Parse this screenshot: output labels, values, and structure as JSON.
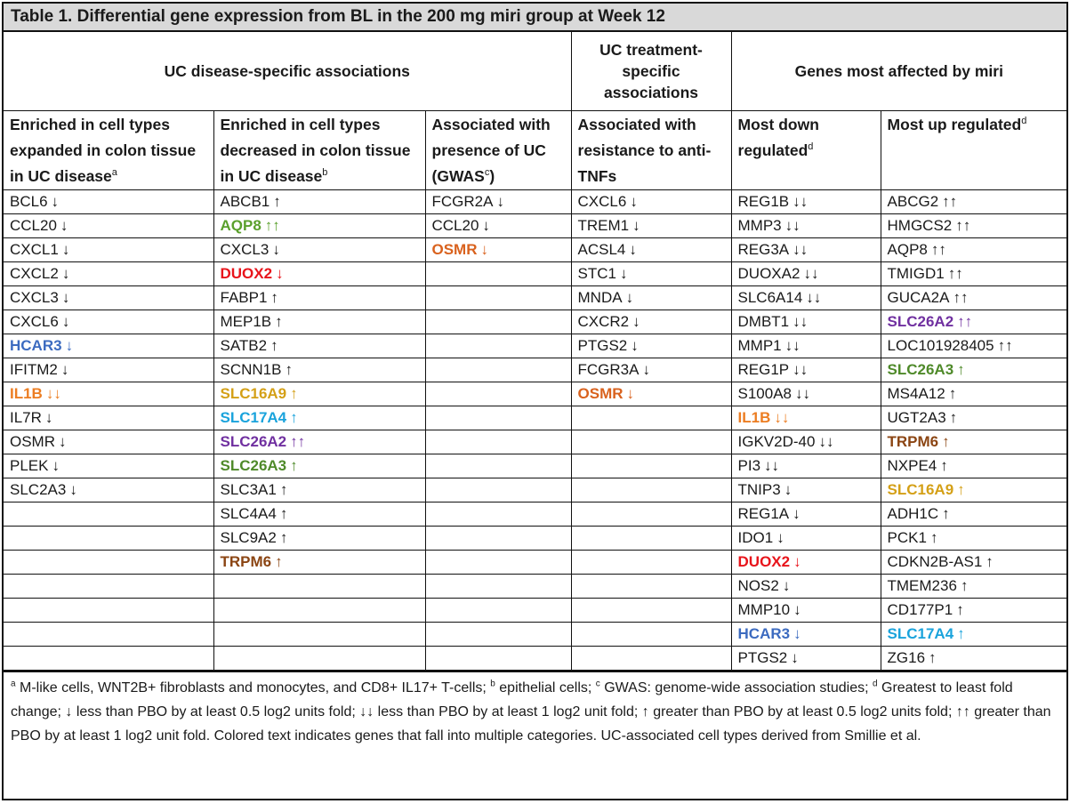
{
  "title": "Table 1. Differential gene expression from BL in the 200 mg miri group at Week 12",
  "groups": [
    "UC disease-specific associations",
    "UC treatment-specific associations",
    "Genes most affected by miri"
  ],
  "headers": [
    {
      "text": "Enriched in cell types expanded in colon tissue in UC disease",
      "sup": "a"
    },
    {
      "text": "Enriched in cell types decreased in colon tissue in UC disease",
      "sup": "b"
    },
    {
      "text": "Associated with presence of UC (GWAS",
      "sup": "c",
      "after": ")"
    },
    {
      "text": "Associated with resistance to anti-TNFs",
      "sup": ""
    },
    {
      "text": "Most down regulated",
      "sup": "d"
    },
    {
      "text": "Most up regulated",
      "sup": "d"
    }
  ],
  "columns": [
    [
      {
        "gene": "BCL6",
        "arrow": "↓"
      },
      {
        "gene": "CCL20",
        "arrow": "↓"
      },
      {
        "gene": "CXCL1",
        "arrow": "↓"
      },
      {
        "gene": "CXCL2",
        "arrow": "↓"
      },
      {
        "gene": "CXCL3",
        "arrow": "↓"
      },
      {
        "gene": "CXCL6",
        "arrow": "↓"
      },
      {
        "gene": "HCAR3",
        "arrow": "↓",
        "color": "blue"
      },
      {
        "gene": "IFITM2",
        "arrow": "↓"
      },
      {
        "gene": "IL1B",
        "arrow": "↓↓",
        "color": "orange"
      },
      {
        "gene": "IL7R",
        "arrow": "↓"
      },
      {
        "gene": "OSMR",
        "arrow": "↓"
      },
      {
        "gene": "PLEK",
        "arrow": "↓"
      },
      {
        "gene": "SLC2A3",
        "arrow": "↓"
      }
    ],
    [
      {
        "gene": "ABCB1",
        "arrow": "↑"
      },
      {
        "gene": "AQP8",
        "arrow": "↑↑",
        "color": "green"
      },
      {
        "gene": "CXCL3",
        "arrow": "↓"
      },
      {
        "gene": "DUOX2",
        "arrow": "↓",
        "color": "red"
      },
      {
        "gene": "FABP1",
        "arrow": "↑"
      },
      {
        "gene": "MEP1B",
        "arrow": "↑"
      },
      {
        "gene": "SATB2",
        "arrow": "↑"
      },
      {
        "gene": "SCNN1B",
        "arrow": "↑"
      },
      {
        "gene": "SLC16A9",
        "arrow": "↑",
        "color": "gold"
      },
      {
        "gene": "SLC17A4",
        "arrow": "↑",
        "color": "cyan"
      },
      {
        "gene": "SLC26A2",
        "arrow": "↑↑",
        "color": "purple"
      },
      {
        "gene": "SLC26A3",
        "arrow": "↑",
        "color": "dgreen"
      },
      {
        "gene": "SLC3A1",
        "arrow": "↑"
      },
      {
        "gene": "SLC4A4",
        "arrow": "↑"
      },
      {
        "gene": "SLC9A2",
        "arrow": "↑"
      },
      {
        "gene": "TRPM6",
        "arrow": "↑",
        "color": "brown"
      }
    ],
    [
      {
        "gene": "FCGR2A",
        "arrow": "↓"
      },
      {
        "gene": "CCL20",
        "arrow": "↓"
      },
      {
        "gene": "OSMR",
        "arrow": "↓",
        "color": "orange2"
      }
    ],
    [
      {
        "gene": "CXCL6",
        "arrow": "↓"
      },
      {
        "gene": "TREM1",
        "arrow": "↓"
      },
      {
        "gene": "ACSL4",
        "arrow": "↓"
      },
      {
        "gene": "STC1",
        "arrow": "↓"
      },
      {
        "gene": "MNDA",
        "arrow": "↓"
      },
      {
        "gene": "CXCR2",
        "arrow": "↓"
      },
      {
        "gene": "PTGS2",
        "arrow": "↓"
      },
      {
        "gene": "FCGR3A",
        "arrow": "↓"
      },
      {
        "gene": "OSMR",
        "arrow": "↓",
        "color": "orange2"
      }
    ],
    [
      {
        "gene": "REG1B",
        "arrow": "↓↓"
      },
      {
        "gene": "MMP3",
        "arrow": "↓↓"
      },
      {
        "gene": "REG3A",
        "arrow": "↓↓"
      },
      {
        "gene": "DUOXA2",
        "arrow": "↓↓"
      },
      {
        "gene": "SLC6A14",
        "arrow": "↓↓"
      },
      {
        "gene": "DMBT1",
        "arrow": "↓↓"
      },
      {
        "gene": "MMP1",
        "arrow": "↓↓"
      },
      {
        "gene": "REG1P",
        "arrow": "↓↓"
      },
      {
        "gene": "S100A8",
        "arrow": "↓↓"
      },
      {
        "gene": "IL1B",
        "arrow": "↓↓",
        "color": "orange"
      },
      {
        "gene": "IGKV2D-40",
        "arrow": "↓↓"
      },
      {
        "gene": "PI3",
        "arrow": "↓↓"
      },
      {
        "gene": "TNIP3",
        "arrow": "↓"
      },
      {
        "gene": "REG1A",
        "arrow": "↓"
      },
      {
        "gene": "IDO1",
        "arrow": "↓"
      },
      {
        "gene": "DUOX2",
        "arrow": "↓",
        "color": "red"
      },
      {
        "gene": "NOS2",
        "arrow": "↓"
      },
      {
        "gene": "MMP10",
        "arrow": "↓"
      },
      {
        "gene": "HCAR3",
        "arrow": "↓",
        "color": "blue"
      },
      {
        "gene": "PTGS2",
        "arrow": "↓"
      }
    ],
    [
      {
        "gene": "ABCG2",
        "arrow": "↑↑"
      },
      {
        "gene": "HMGCS2",
        "arrow": "↑↑"
      },
      {
        "gene": "AQP8",
        "arrow": "↑↑"
      },
      {
        "gene": "TMIGD1",
        "arrow": "↑↑"
      },
      {
        "gene": "GUCA2A",
        "arrow": "↑↑"
      },
      {
        "gene": "SLC26A2",
        "arrow": "↑↑",
        "color": "purple"
      },
      {
        "gene": "LOC101928405",
        "arrow": "↑↑"
      },
      {
        "gene": "SLC26A3",
        "arrow": "↑",
        "color": "dgreen"
      },
      {
        "gene": "MS4A12",
        "arrow": "↑"
      },
      {
        "gene": "UGT2A3",
        "arrow": "↑"
      },
      {
        "gene": "TRPM6",
        "arrow": "↑",
        "color": "brown"
      },
      {
        "gene": "NXPE4",
        "arrow": "↑"
      },
      {
        "gene": "SLC16A9",
        "arrow": "↑",
        "color": "gold"
      },
      {
        "gene": "ADH1C",
        "arrow": "↑"
      },
      {
        "gene": "PCK1",
        "arrow": "↑"
      },
      {
        "gene": "CDKN2B-AS1",
        "arrow": "↑"
      },
      {
        "gene": "TMEM236",
        "arrow": "↑"
      },
      {
        "gene": "CD177P1",
        "arrow": "↑"
      },
      {
        "gene": "SLC17A4",
        "arrow": "↑",
        "color": "cyan"
      },
      {
        "gene": "ZG16",
        "arrow": "↑"
      }
    ]
  ],
  "footnote": {
    "a": "a",
    "a_text": " M-like cells, WNT2B+ fibroblasts and monocytes, and CD8+ IL17+ T-cells; ",
    "b": "b",
    "b_text": " epithelial cells; ",
    "c": "c",
    "c_text": " GWAS: genome-wide association studies; ",
    "d": "d",
    "d_text": " Greatest to least fold change; ↓ less than PBO by at least 0.5 log2 units fold; ↓↓ less than PBO by at least 1 log2 unit fold; ↑ greater than PBO by at least 0.5 log2 units fold; ↑↑ greater than PBO by at least 1 log2 unit fold. Colored text indicates genes that fall into multiple categories.  UC-associated cell types derived from Smillie et al."
  },
  "colors": {
    "green": "#5aa02c",
    "red": "#e8141b",
    "blue": "#3c6bc0",
    "orange": "#ec7d22",
    "orange2": "#d9621e",
    "gold": "#d4a017",
    "cyan": "#1aa3dc",
    "purple": "#7030a0",
    "dgreen": "#4f8a2a",
    "brown": "#8b4513"
  }
}
